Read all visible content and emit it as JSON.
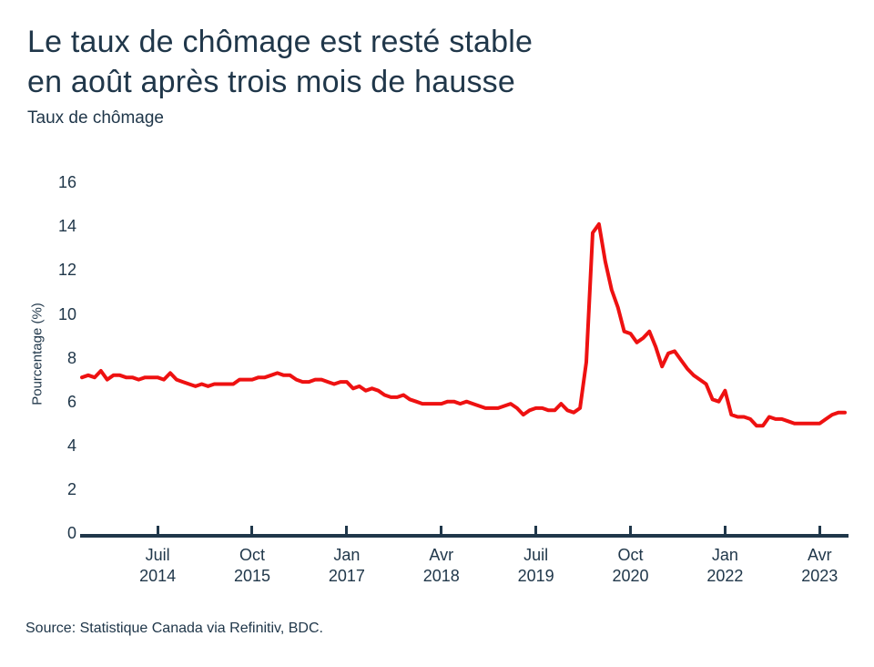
{
  "header": {
    "title_line1": "Le taux de chômage est resté stable",
    "title_line2": "en août après trois mois de hausse"
  },
  "footer": {
    "source": "Source: Statistique Canada via Refinitiv, BDC."
  },
  "chart_data": {
    "type": "line",
    "title": "Taux de chômage",
    "ylabel": "Pourcentage (%)",
    "ylim": [
      0,
      16
    ],
    "y_ticks": [
      0,
      2,
      4,
      6,
      8,
      10,
      12,
      14,
      16
    ],
    "grid": false,
    "legend": false,
    "line_color": "#ee1111",
    "axis_color": "#20374a",
    "x_frequency": "monthly",
    "x_range": [
      "Juil 2013",
      "Août 2023"
    ],
    "x_ticks": [
      {
        "month": "Juil",
        "year": "2014",
        "month_index": 12
      },
      {
        "month": "Oct",
        "year": "2015",
        "month_index": 27
      },
      {
        "month": "Jan",
        "year": "2017",
        "month_index": 42
      },
      {
        "month": "Avr",
        "year": "2018",
        "month_index": 57
      },
      {
        "month": "Juil",
        "year": "2019",
        "month_index": 72
      },
      {
        "month": "Oct",
        "year": "2020",
        "month_index": 87
      },
      {
        "month": "Jan",
        "year": "2022",
        "month_index": 102
      },
      {
        "month": "Avr",
        "year": "2023",
        "month_index": 117
      }
    ],
    "series": [
      {
        "name": "Taux de chômage (%)",
        "start": "Juil 2013",
        "values": [
          7.1,
          7.2,
          7.1,
          7.4,
          7.0,
          7.2,
          7.2,
          7.1,
          7.1,
          7.0,
          7.1,
          7.1,
          7.1,
          7.0,
          7.3,
          7.0,
          6.9,
          6.8,
          6.7,
          6.8,
          6.7,
          6.8,
          6.8,
          6.8,
          6.8,
          7.0,
          7.0,
          7.0,
          7.1,
          7.1,
          7.2,
          7.3,
          7.2,
          7.2,
          7.0,
          6.9,
          6.9,
          7.0,
          7.0,
          6.9,
          6.8,
          6.9,
          6.9,
          6.6,
          6.7,
          6.5,
          6.6,
          6.5,
          6.3,
          6.2,
          6.2,
          6.3,
          6.1,
          6.0,
          5.9,
          5.9,
          5.9,
          5.9,
          6.0,
          6.0,
          5.9,
          6.0,
          5.9,
          5.8,
          5.7,
          5.7,
          5.7,
          5.8,
          5.9,
          5.7,
          5.4,
          5.6,
          5.7,
          5.7,
          5.6,
          5.6,
          5.9,
          5.6,
          5.5,
          5.7,
          7.8,
          13.7,
          14.1,
          12.4,
          11.1,
          10.3,
          9.2,
          9.1,
          8.7,
          8.9,
          9.2,
          8.5,
          7.6,
          8.2,
          8.3,
          7.9,
          7.5,
          7.2,
          7.0,
          6.8,
          6.1,
          6.0,
          6.5,
          5.4,
          5.3,
          5.3,
          5.2,
          4.9,
          4.9,
          5.3,
          5.2,
          5.2,
          5.1,
          5.0,
          5.0,
          5.0,
          5.0,
          5.0,
          5.2,
          5.4,
          5.5,
          5.5
        ]
      }
    ]
  }
}
